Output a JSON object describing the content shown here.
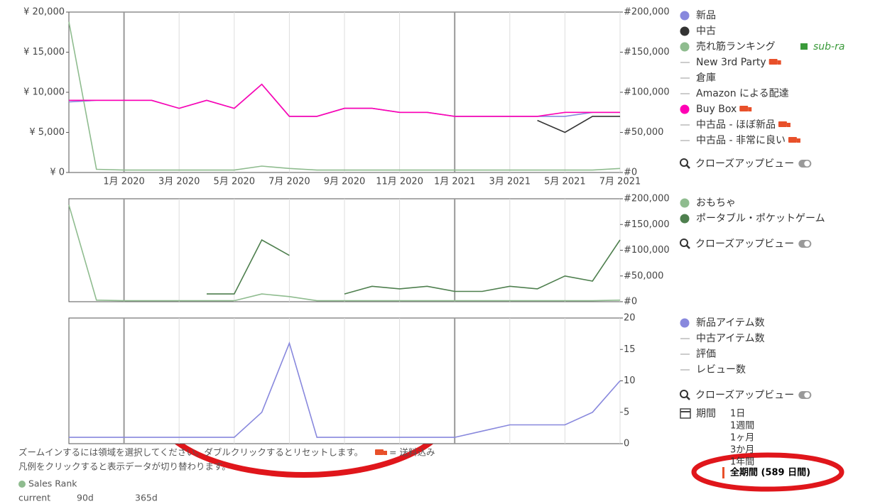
{
  "chart_data": [
    {
      "type": "line",
      "x": [
        "2019-11",
        "2019-12",
        "2020-01",
        "2020-02",
        "2020-03",
        "2020-04",
        "2020-05",
        "2020-06",
        "2020-07",
        "2020-08",
        "2020-09",
        "2020-10",
        "2020-11",
        "2020-12",
        "2021-01",
        "2021-02",
        "2021-03",
        "2021-04",
        "2021-05",
        "2021-06",
        "2021-07"
      ],
      "xlim": [
        "2019-11",
        "2021-07"
      ],
      "xticks": [
        {
          "value": "2020-01",
          "label": "1月 2020"
        },
        {
          "value": "2020-03",
          "label": "3月 2020"
        },
        {
          "value": "2020-05",
          "label": "5月 2020"
        },
        {
          "value": "2020-07",
          "label": "7月 2020"
        },
        {
          "value": "2020-09",
          "label": "9月 2020"
        },
        {
          "value": "2020-11",
          "label": "11月 2020"
        },
        {
          "value": "2021-01",
          "label": "1月 2021"
        },
        {
          "value": "2021-03",
          "label": "3月 2021"
        },
        {
          "value": "2021-05",
          "label": "5月 2021"
        },
        {
          "value": "2021-07",
          "label": "7月 2021"
        }
      ],
      "ylim": [
        0,
        20000
      ],
      "yticks": [
        {
          "value": 0,
          "label": "¥ 0"
        },
        {
          "value": 5000,
          "label": "¥ 5,000"
        },
        {
          "value": 10000,
          "label": "¥ 10,000"
        },
        {
          "value": 15000,
          "label": "¥ 15,000"
        },
        {
          "value": 20000,
          "label": "¥ 20,000"
        }
      ],
      "y2lim": [
        0,
        200000
      ],
      "y2ticks": [
        {
          "value": 0,
          "label": "#0"
        },
        {
          "value": 50000,
          "label": "#50,000"
        },
        {
          "value": 100000,
          "label": "#100,000"
        },
        {
          "value": 150000,
          "label": "#150,000"
        },
        {
          "value": 200000,
          "label": "#200,000"
        }
      ],
      "series": [
        {
          "name": "新品",
          "color": "#8888dd",
          "visible": true,
          "values": [
            8800,
            9000,
            9000,
            9000,
            8000,
            9000,
            8000,
            11000,
            7000,
            7000,
            8000,
            8000,
            7500,
            7500,
            7000,
            7000,
            7000,
            7000,
            7000,
            7500,
            7500
          ]
        },
        {
          "name": "中古",
          "color": "#333333",
          "visible": true,
          "values": [
            null,
            null,
            null,
            null,
            null,
            null,
            null,
            null,
            null,
            null,
            null,
            null,
            null,
            null,
            null,
            null,
            null,
            6500,
            5000,
            7000,
            7000
          ]
        },
        {
          "name": "売れ筋ランキング",
          "color": "#8fbc8f",
          "visible": true,
          "axis": "y2",
          "badge": "sub-ra",
          "values": [
            188000,
            4000,
            3000,
            3000,
            3000,
            3000,
            3000,
            8000,
            5000,
            3000,
            3000,
            3000,
            3000,
            3000,
            3000,
            3000,
            3000,
            3000,
            3000,
            3000,
            5000
          ]
        },
        {
          "name": "New 3rd Party",
          "color": "#999999",
          "visible": false,
          "shipping": true,
          "values": [
            null,
            null,
            null,
            null,
            null,
            null,
            null,
            null,
            null,
            null,
            null,
            null,
            null,
            null,
            null,
            null,
            null,
            null,
            null,
            null,
            null
          ]
        },
        {
          "name": "倉庫",
          "color": "#999999",
          "visible": false,
          "values": [
            null,
            null,
            null,
            null,
            null,
            null,
            null,
            null,
            null,
            null,
            null,
            null,
            null,
            null,
            null,
            null,
            null,
            null,
            null,
            null,
            null
          ]
        },
        {
          "name": "Amazon による配達",
          "color": "#999999",
          "visible": false,
          "values": [
            null,
            null,
            null,
            null,
            null,
            null,
            null,
            null,
            null,
            null,
            null,
            null,
            null,
            null,
            null,
            null,
            null,
            null,
            null,
            null,
            null
          ]
        },
        {
          "name": "Buy Box",
          "color": "#ff00b4",
          "visible": true,
          "shipping": true,
          "values": [
            9000,
            9000,
            9000,
            9000,
            8000,
            9000,
            8000,
            11000,
            7000,
            7000,
            8000,
            8000,
            7500,
            7500,
            7000,
            7000,
            7000,
            7000,
            7500,
            7500,
            7500
          ]
        },
        {
          "name": "中古品 - ほぼ新品",
          "color": "#999999",
          "visible": false,
          "shipping": true,
          "values": [
            null,
            null,
            null,
            null,
            null,
            null,
            null,
            null,
            null,
            null,
            null,
            null,
            null,
            null,
            null,
            null,
            null,
            null,
            null,
            null,
            null
          ]
        },
        {
          "name": "中古品 - 非常に良い",
          "color": "#999999",
          "visible": false,
          "shipping": true,
          "values": [
            null,
            null,
            null,
            null,
            null,
            null,
            null,
            null,
            null,
            null,
            null,
            null,
            null,
            null,
            null,
            null,
            null,
            null,
            null,
            null,
            null
          ]
        }
      ],
      "closeup_label": "クローズアップビュー"
    },
    {
      "type": "line",
      "x": [
        "2019-11",
        "2019-12",
        "2020-01",
        "2020-02",
        "2020-03",
        "2020-04",
        "2020-05",
        "2020-06",
        "2020-07",
        "2020-08",
        "2020-09",
        "2020-10",
        "2020-11",
        "2020-12",
        "2021-01",
        "2021-02",
        "2021-03",
        "2021-04",
        "2021-05",
        "2021-06",
        "2021-07"
      ],
      "xlim": [
        "2019-11",
        "2021-07"
      ],
      "y2lim": [
        0,
        200000
      ],
      "y2ticks": [
        {
          "value": 0,
          "label": "#0"
        },
        {
          "value": 50000,
          "label": "#50,000"
        },
        {
          "value": 100000,
          "label": "#100,000"
        },
        {
          "value": 150000,
          "label": "#150,000"
        },
        {
          "value": 200000,
          "label": "#200,000"
        }
      ],
      "series": [
        {
          "name": "おもちゃ",
          "color": "#8fbc8f",
          "visible": true,
          "axis": "y2",
          "values": [
            188000,
            3000,
            2000,
            2000,
            2000,
            2000,
            2000,
            15000,
            10000,
            2000,
            2000,
            2000,
            2000,
            2000,
            2000,
            2000,
            2000,
            2000,
            2000,
            2000,
            3000
          ]
        },
        {
          "name": "ポータブル・ポケットゲーム",
          "color": "#4e7f4e",
          "visible": true,
          "axis": "y2",
          "values": [
            null,
            null,
            null,
            null,
            null,
            15000,
            15000,
            120000,
            90000,
            null,
            15000,
            30000,
            25000,
            30000,
            20000,
            20000,
            30000,
            25000,
            50000,
            40000,
            120000
          ]
        }
      ],
      "closeup_label": "クローズアップビュー"
    },
    {
      "type": "line",
      "x": [
        "2019-11",
        "2019-12",
        "2020-01",
        "2020-02",
        "2020-03",
        "2020-04",
        "2020-05",
        "2020-06",
        "2020-07",
        "2020-08",
        "2020-09",
        "2020-10",
        "2020-11",
        "2020-12",
        "2021-01",
        "2021-02",
        "2021-03",
        "2021-04",
        "2021-05",
        "2021-06",
        "2021-07"
      ],
      "xlim": [
        "2019-11",
        "2021-07"
      ],
      "y2lim": [
        0,
        20
      ],
      "y2ticks": [
        0,
        5,
        10,
        15,
        20
      ],
      "series": [
        {
          "name": "新品アイテム数",
          "color": "#8888dd",
          "visible": true,
          "axis": "y2",
          "values": [
            1,
            1,
            1,
            1,
            1,
            1,
            1,
            5,
            16,
            1,
            1,
            1,
            1,
            1,
            1,
            2,
            3,
            3,
            3,
            5,
            10
          ]
        },
        {
          "name": "中古アイテム数",
          "color": "#999999",
          "visible": false,
          "values": [
            null,
            null,
            null,
            null,
            null,
            null,
            null,
            null,
            null,
            null,
            null,
            null,
            null,
            null,
            null,
            null,
            null,
            null,
            null,
            null,
            null
          ]
        },
        {
          "name": "評価",
          "color": "#999999",
          "visible": false,
          "values": [
            null,
            null,
            null,
            null,
            null,
            null,
            null,
            null,
            null,
            null,
            null,
            null,
            null,
            null,
            null,
            null,
            null,
            null,
            null,
            null,
            null
          ]
        },
        {
          "name": "レビュー数",
          "color": "#999999",
          "visible": false,
          "values": [
            null,
            null,
            null,
            null,
            null,
            null,
            null,
            null,
            null,
            null,
            null,
            null,
            null,
            null,
            null,
            null,
            null,
            null,
            null,
            null,
            null
          ]
        }
      ],
      "closeup_label": "クローズアップビュー"
    }
  ],
  "ui": {
    "zoom_hint": "ズームインするには領域を選択してください。ダブルクリックするとリセットします。",
    "shipping_note": "= 送料込み",
    "legend_hint": "凡例をクリックすると表示データが切り替わります。",
    "sales_rank": {
      "title": "Sales Rank",
      "columns": [
        "current",
        "90d",
        "365d"
      ]
    },
    "period": {
      "label": "期間",
      "options": [
        "1日",
        "1週間",
        "1ヶ月",
        "3か月",
        "1年間",
        "全期間 (589 日間)"
      ],
      "selected": 5
    }
  }
}
